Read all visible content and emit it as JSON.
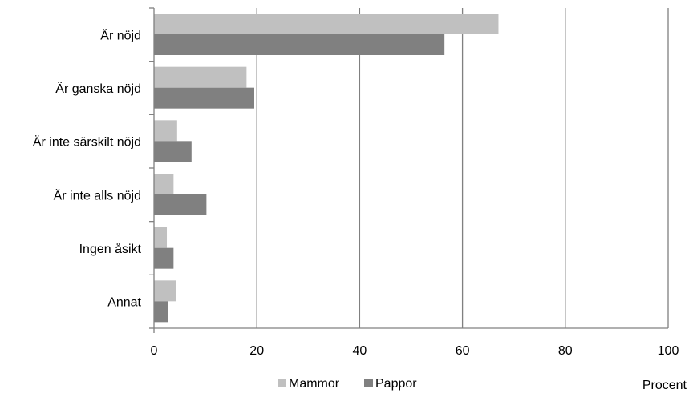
{
  "chart_data": {
    "type": "bar",
    "orientation": "horizontal",
    "categories": [
      "Är nöjd",
      "Är ganska nöjd",
      "Är inte särskilt nöjd",
      "Är inte alls nöjd",
      "Ingen åsikt",
      "Annat"
    ],
    "series": [
      {
        "name": "Mammor",
        "color": "#c0c0c0",
        "values": [
          67,
          18,
          4.5,
          3.8,
          2.5,
          4.3
        ]
      },
      {
        "name": "Pappor",
        "color": "#808080",
        "values": [
          56.5,
          19.5,
          7.3,
          10.2,
          3.8,
          2.7
        ]
      }
    ],
    "xlim": [
      0,
      100
    ],
    "xticks": [
      0,
      20,
      40,
      60,
      80,
      100
    ],
    "xunit": "Procent",
    "grid": true,
    "legend_position": "bottom"
  }
}
